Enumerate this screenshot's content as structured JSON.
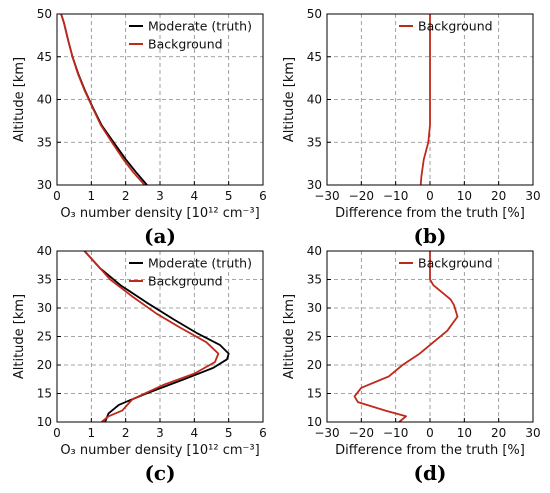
{
  "chart_data": [
    {
      "type": "line",
      "panel": "(a)",
      "xlabel": "O₃ number density [10¹² cm⁻³]",
      "ylabel": "Altitude [km]",
      "xlim": [
        0,
        6
      ],
      "ylim": [
        30,
        50
      ],
      "xticks": [
        "0",
        "1",
        "2",
        "3",
        "4",
        "5",
        "6"
      ],
      "yticks": [
        "30",
        "35",
        "40",
        "45",
        "50"
      ],
      "grid": true,
      "legend": "top-right",
      "series": [
        {
          "name": "Moderate (truth)",
          "color": "#000000",
          "x": [
            2.62,
            2.3,
            2.0,
            1.65,
            1.3,
            1.05,
            0.82,
            0.62,
            0.45,
            0.32,
            0.2,
            0.12
          ],
          "y": [
            30,
            31.5,
            33,
            35,
            37,
            39,
            41,
            43,
            45,
            47,
            49,
            50
          ]
        },
        {
          "name": "Background",
          "color": "#c0281c",
          "x": [
            2.55,
            2.22,
            1.93,
            1.6,
            1.28,
            1.04,
            0.81,
            0.61,
            0.45,
            0.32,
            0.2,
            0.12
          ],
          "y": [
            30,
            31.5,
            33,
            35,
            37,
            39,
            41,
            43,
            45,
            47,
            49,
            50
          ]
        }
      ]
    },
    {
      "type": "line",
      "panel": "(b)",
      "xlabel": "Difference from the truth [%]",
      "ylabel": "Altitude [km]",
      "xlim": [
        -30,
        30
      ],
      "ylim": [
        30,
        50
      ],
      "xticks": [
        "−30",
        "−20",
        "−10",
        "0",
        "10",
        "20",
        "30"
      ],
      "yticks": [
        "30",
        "35",
        "40",
        "45",
        "50"
      ],
      "grid": true,
      "legend": "top-right",
      "series": [
        {
          "name": "Background",
          "color": "#c0281c",
          "x": [
            -2.7,
            -2.5,
            -1.8,
            -0.5,
            0.0,
            0.0
          ],
          "y": [
            30,
            31,
            33,
            35,
            37,
            50
          ]
        }
      ]
    },
    {
      "type": "line",
      "panel": "(c)",
      "xlabel": "O₃ number density [10¹² cm⁻³]",
      "ylabel": "Altitude [km]",
      "xlim": [
        0,
        6
      ],
      "ylim": [
        10,
        40
      ],
      "xticks": [
        "0",
        "1",
        "2",
        "3",
        "4",
        "5",
        "6"
      ],
      "yticks": [
        "10",
        "15",
        "20",
        "25",
        "30",
        "35",
        "40"
      ],
      "grid": true,
      "legend": "top-right",
      "series": [
        {
          "name": "Moderate (truth)",
          "color": "#000000",
          "x": [
            1.4,
            1.5,
            1.8,
            2.6,
            3.7,
            4.55,
            4.95,
            5.0,
            4.75,
            4.1,
            3.4,
            2.6,
            1.85,
            1.25,
            0.8
          ],
          "y": [
            10,
            11.5,
            13,
            15,
            17.5,
            19.5,
            21,
            22,
            23.5,
            25.5,
            28,
            31,
            34,
            37,
            40
          ]
        },
        {
          "name": "Background",
          "color": "#c0281c",
          "x": [
            1.3,
            1.5,
            1.9,
            2.2,
            3.1,
            4.0,
            4.6,
            4.7,
            4.35,
            3.6,
            2.9,
            2.2,
            1.55,
            1.1,
            0.8
          ],
          "y": [
            10,
            11,
            12,
            14,
            16.5,
            18.5,
            20.5,
            22,
            24,
            26.5,
            29,
            32,
            35,
            38,
            40
          ]
        }
      ]
    },
    {
      "type": "line",
      "panel": "(d)",
      "xlabel": "Difference from the truth [%]",
      "ylabel": "Altitude [km]",
      "xlim": [
        -30,
        30
      ],
      "ylim": [
        10,
        40
      ],
      "xticks": [
        "−30",
        "−20",
        "−10",
        "0",
        "10",
        "20",
        "30"
      ],
      "yticks": [
        "10",
        "15",
        "20",
        "25",
        "30",
        "35",
        "40"
      ],
      "grid": true,
      "legend": "top-right",
      "series": [
        {
          "name": "Background",
          "color": "#c0281c",
          "x": [
            -9,
            -7,
            -13,
            -21,
            -22,
            -20,
            -12,
            -8,
            -3,
            1,
            5,
            8,
            7,
            6,
            3,
            1,
            0,
            0
          ],
          "y": [
            10,
            11,
            12,
            13.5,
            14.5,
            16,
            18,
            20,
            22,
            24,
            26,
            28.5,
            30.5,
            31.5,
            33,
            34,
            35,
            40
          ]
        }
      ]
    }
  ]
}
